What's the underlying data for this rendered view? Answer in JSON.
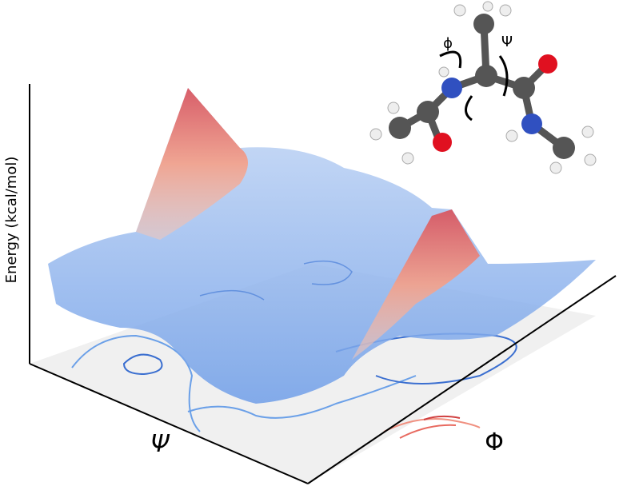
{
  "axes": {
    "z_label": "Energy (kcal/mol)",
    "psi_label": "Ψ",
    "phi_label": "Φ"
  },
  "molecule": {
    "phi_label": "ϕ",
    "psi_label": "Ψ"
  }
}
